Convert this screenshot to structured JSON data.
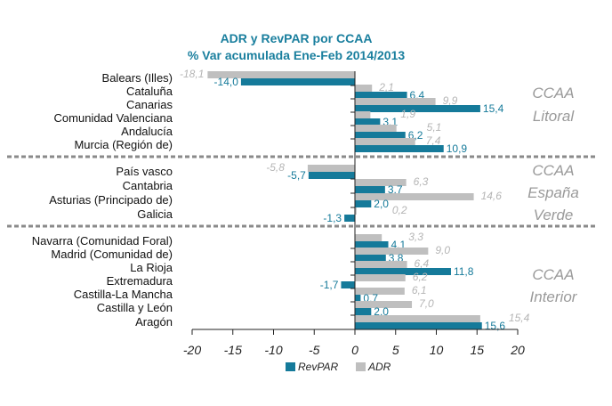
{
  "chart_data": {
    "type": "bar",
    "orientation": "horizontal",
    "title": "ADR y RevPAR por CCAA",
    "subtitle": "% Var acumulada Ene-Feb 2014/2013",
    "categories": [
      "Balears (Illes)",
      "Cataluña",
      "Canarias",
      "Comunidad Valenciana",
      "Andalucía",
      "Murcia (Región de)",
      "País vasco",
      "Cantabria",
      "Asturias (Principado de)",
      "Galicia",
      "Navarra (Comunidad Foral)",
      "Madrid (Comunidad de)",
      "La Rioja",
      "Extremadura",
      "Castilla-La Mancha",
      "Castilla y León",
      "Aragón"
    ],
    "series": [
      {
        "name": "RevPAR",
        "color": "#157a9a",
        "values": [
          -14.0,
          6.4,
          15.4,
          3.1,
          6.2,
          10.9,
          -5.7,
          3.7,
          2.0,
          -1.3,
          4.1,
          3.8,
          11.8,
          -1.7,
          0.7,
          2.0,
          15.6
        ],
        "labels": [
          "-14,0",
          "6,4",
          "15,4",
          "3,1",
          "6,2",
          "10,9",
          "-5,7",
          "3,7",
          "2,0",
          "-1,3",
          "4,1",
          "3,8",
          "11,8",
          "-1,7",
          "0,7",
          "2,0",
          "15,6"
        ]
      },
      {
        "name": "ADR",
        "color": "#bfbfbf",
        "values": [
          -18.1,
          2.1,
          9.9,
          1.9,
          5.1,
          7.4,
          -5.8,
          6.3,
          14.6,
          0.2,
          3.3,
          9.0,
          6.4,
          6.2,
          6.1,
          7.0,
          15.4
        ],
        "labels": [
          "-18,1",
          "2,1",
          "9,9",
          "1,9",
          "5,1",
          "7,4",
          "-5,8",
          "6,3",
          "14,6",
          "0,2",
          "3,3",
          "9,0",
          "6,4",
          "6,2",
          "6,1",
          "7,0",
          "15,4"
        ]
      }
    ],
    "groups": [
      {
        "lines": [
          "CCAA",
          "Litoral"
        ],
        "count": 6
      },
      {
        "lines": [
          "CCAA",
          "España",
          "Verde"
        ],
        "count": 4
      },
      {
        "lines": [
          "CCAA",
          "Interior"
        ],
        "count": 7
      }
    ],
    "xlim": [
      -20,
      20
    ],
    "xticks": [
      "-20",
      "-15",
      "-10",
      "-5",
      "0",
      "5",
      "10",
      "15",
      "20"
    ],
    "grid": false,
    "legend_position": "bottom"
  }
}
